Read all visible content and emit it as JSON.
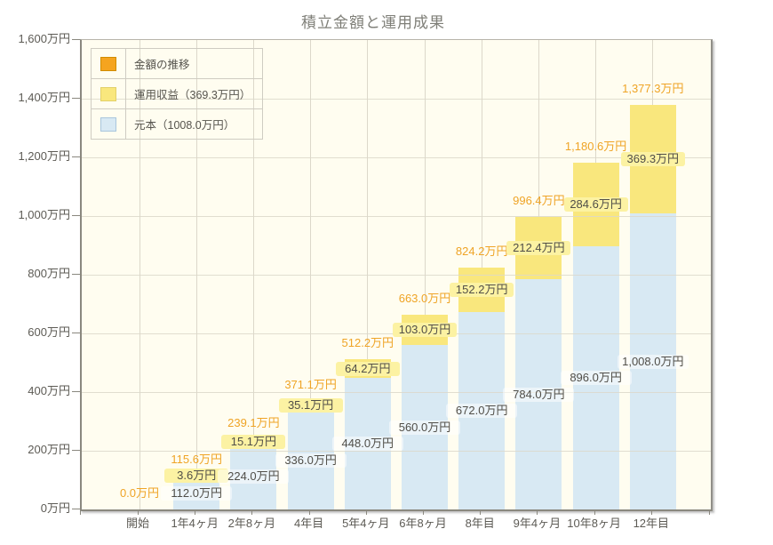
{
  "title": "積立金額と運用成果",
  "legend": {
    "items": [
      {
        "label": "金額の推移",
        "swatch_fill": "#f5a41f",
        "swatch_border": "#d18c00"
      },
      {
        "label": "運用収益（369.3万円）",
        "swatch_fill": "#f9e77d",
        "swatch_border": "#e2d069"
      },
      {
        "label": "元本（1008.0万円）",
        "swatch_fill": "#d8e9f3",
        "swatch_border": "#a9c6dd"
      }
    ]
  },
  "colors": {
    "page_bg": "#ffffff",
    "plot_bg": "#fffdf0",
    "grid": "#dcd8ca",
    "axis": "#8a887f",
    "principal_fill": "#d8e9f3",
    "profit_fill": "#f9e77d",
    "profit_label_bg": "#fcf2a3",
    "principal_label_bg": "rgba(255,255,255,0.5)",
    "total_label_color": "#efa426",
    "value_label_color": "#504e48",
    "axis_label_color": "#5d5b55",
    "title_color": "#7f7f78"
  },
  "y_axis": {
    "tick_labels": [
      "1,600万円",
      "1,400万円",
      "1,200万円",
      "1,000万円",
      "800万円",
      "600万円",
      "400万円",
      "200万円",
      "0万円"
    ],
    "max": 1600,
    "step": 200
  },
  "chart_data": {
    "type": "bar",
    "stacked": true,
    "title": "積立金額と運用成果",
    "xlabel": "",
    "ylabel": "",
    "ylim": [
      0,
      1600
    ],
    "grid": true,
    "legend_position": "top-left",
    "categories": [
      "開始",
      "1年4ヶ月",
      "2年8ヶ月",
      "4年目",
      "5年4ヶ月",
      "6年8ヶ月",
      "8年目",
      "9年4ヶ月",
      "10年8ヶ月",
      "12年目"
    ],
    "series": [
      {
        "name": "元本",
        "values": [
          0,
          112.0,
          224.0,
          336.0,
          448.0,
          560.0,
          672.0,
          784.0,
          896.0,
          1008.0
        ]
      },
      {
        "name": "運用収益",
        "values": [
          0,
          3.6,
          15.1,
          35.1,
          64.2,
          103.0,
          152.2,
          212.4,
          284.6,
          369.3
        ]
      }
    ],
    "totals": [
      0,
      115.6,
      239.1,
      371.1,
      512.2,
      663.0,
      824.2,
      996.4,
      1180.6,
      1377.3
    ],
    "value_labels": {
      "totals": [
        "0.0万円",
        "115.6万円",
        "239.1万円",
        "371.1万円",
        "512.2万円",
        "663.0万円",
        "824.2万円",
        "996.4万円",
        "1,180.6万円",
        "1,377.3万円"
      ],
      "profit": [
        null,
        "3.6万円",
        "15.1万円",
        "35.1万円",
        "64.2万円",
        "103.0万円",
        "152.2万円",
        "212.4万円",
        "284.6万円",
        "369.3万円"
      ],
      "principal": [
        null,
        "112.0万円",
        "224.0万円",
        "336.0万円",
        "448.0万円",
        "560.0万円",
        "672.0万円",
        "784.0万円",
        "896.0万円",
        "1,008.0万円"
      ]
    }
  }
}
